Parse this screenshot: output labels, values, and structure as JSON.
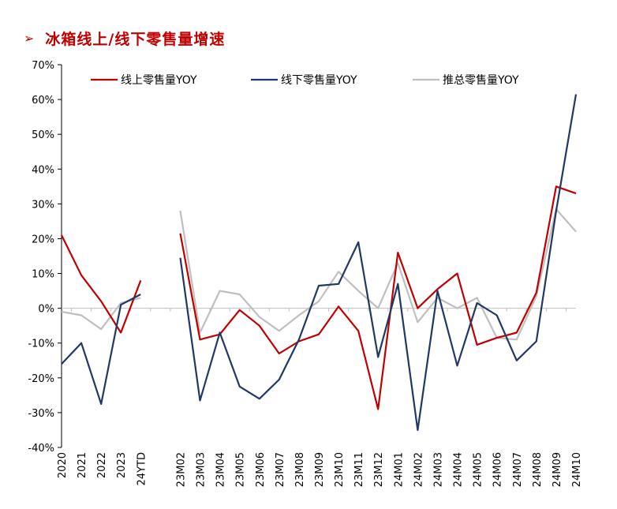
{
  "header": {
    "arrow": "➢",
    "title": "冰箱线上/线下零售量增速"
  },
  "chart_data": {
    "type": "line",
    "title": "冰箱线上/线下零售量增速",
    "xlabel": "",
    "ylabel": "",
    "ylim": [
      -40,
      70
    ],
    "yticks": [
      -40,
      -30,
      -20,
      -10,
      0,
      10,
      20,
      30,
      40,
      50,
      60,
      70
    ],
    "yticklabels": [
      "-40%",
      "-30%",
      "-20%",
      "-10%",
      "0%",
      "10%",
      "20%",
      "30%",
      "40%",
      "50%",
      "60%",
      "70%"
    ],
    "grid": false,
    "legend": "top",
    "categories": [
      "2020",
      "2021",
      "2022",
      "2023",
      "24YTD",
      "",
      "23M02",
      "23M03",
      "23M04",
      "23M05",
      "23M06",
      "23M07",
      "23M08",
      "23M09",
      "23M10",
      "23M11",
      "23M12",
      "24M01",
      "24M02",
      "24M03",
      "24M04",
      "24M05",
      "24M06",
      "24M07",
      "24M08",
      "24M09",
      "24M10"
    ],
    "series": [
      {
        "name": "线上零售量YOY",
        "color": "#c00000",
        "values": [
          21,
          9.5,
          2,
          -7,
          8,
          null,
          21.5,
          -9,
          -7.5,
          -0.5,
          -5,
          -13,
          -9.5,
          -7.5,
          0.5,
          -6.5,
          -29,
          16,
          0,
          5.5,
          10,
          -10.5,
          -8.5,
          -7,
          4.5,
          35,
          33
        ]
      },
      {
        "name": "线下零售量YOY",
        "color": "#1f3864",
        "values": [
          -16,
          -10,
          -27.5,
          1,
          4,
          null,
          14.5,
          -26.5,
          -7,
          -22.5,
          -26,
          -20.5,
          -9,
          6.5,
          7,
          19,
          -14,
          7,
          -35,
          5,
          -16.5,
          1.5,
          -2,
          -15,
          -9.5,
          28,
          61.5
        ]
      },
      {
        "name": "推总零售量YOY",
        "color": "#bfbfbf",
        "values": [
          -1,
          -2,
          -6,
          1.5,
          3,
          null,
          28,
          -7,
          5,
          4,
          -2.5,
          -6.5,
          -2,
          2,
          10.5,
          5,
          0,
          13,
          -4,
          3,
          0,
          3,
          -8.5,
          -9,
          3.5,
          28.5,
          22
        ]
      }
    ]
  }
}
